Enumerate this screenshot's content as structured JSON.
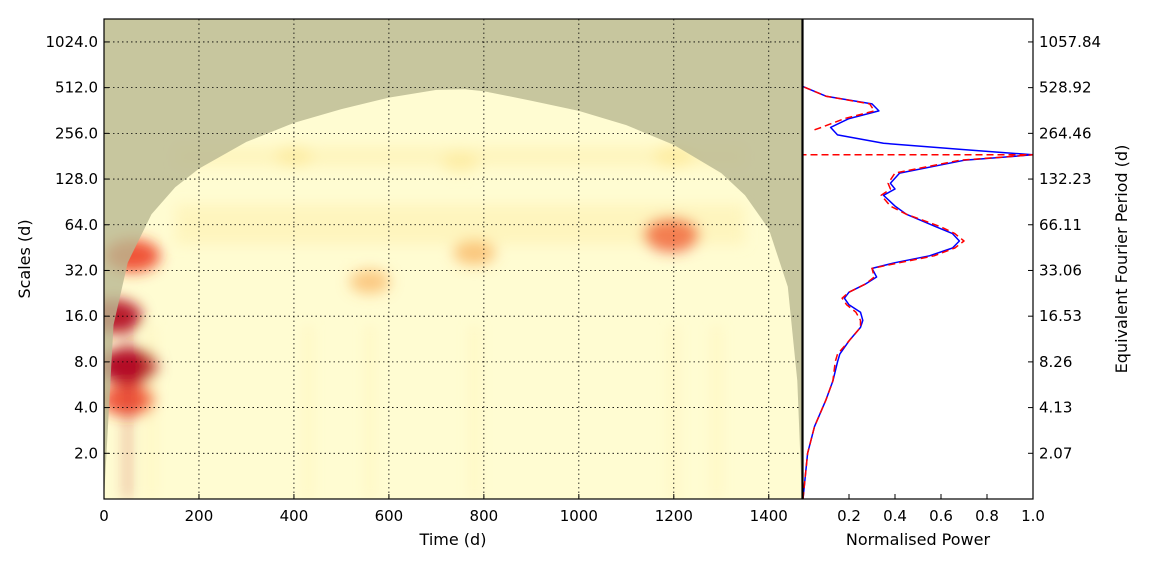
{
  "chart_data": [
    {
      "type": "heatmap",
      "name": "wavelet-power-spectrum",
      "xlabel": "Time (d)",
      "ylabel": "Scales (d)",
      "xlim": [
        0,
        1470
      ],
      "x_ticks": [
        0,
        200,
        400,
        600,
        800,
        1000,
        1200,
        1400
      ],
      "y_scale": "log2",
      "ylim": [
        1.0,
        1450
      ],
      "y_ticks": [
        2.0,
        4.0,
        8.0,
        16.0,
        32.0,
        64.0,
        128.0,
        256.0,
        512.0,
        1024.0
      ],
      "y_tick_labels": [
        "2.0",
        "4.0",
        "8.0",
        "16.0",
        "32.0",
        "64.0",
        "128.0",
        "256.0",
        "512.0",
        "1024.0"
      ],
      "grid": true,
      "colormap": [
        "#fffcd2",
        "#fde68e",
        "#f9a547",
        "#ee3a1f",
        "#b0001a"
      ],
      "cone_of_influence_color": "#b9b891",
      "cone_of_influence": {
        "time": [
          0,
          20,
          50,
          100,
          150,
          200,
          300,
          400,
          500,
          600,
          700,
          760,
          800,
          900,
          1000,
          1100,
          1200,
          1300,
          1350,
          1400,
          1440,
          1460,
          1470
        ],
        "scale": [
          1.0,
          14,
          36,
          75,
          113,
          150,
          225,
          300,
          370,
          440,
          495,
          500,
          485,
          420,
          360,
          290,
          215,
          140,
          100,
          60,
          25,
          6,
          1.0
        ]
      },
      "features": [
        {
          "time": 50,
          "scale": 7.5,
          "power": 1.0
        },
        {
          "time": 50,
          "scale": 4.5,
          "power": 0.8
        },
        {
          "time": 20,
          "scale": 16,
          "power": 0.9
        },
        {
          "time": 60,
          "scale": 40,
          "power": 0.85
        },
        {
          "time": 1195,
          "scale": 55,
          "power": 0.85
        },
        {
          "time": 780,
          "scale": 42,
          "power": 0.45
        },
        {
          "time": 560,
          "scale": 27,
          "power": 0.4
        },
        {
          "time": 1200,
          "scale": 180,
          "power": 0.35
        },
        {
          "time": 400,
          "scale": 180,
          "power": 0.25
        },
        {
          "time": 750,
          "scale": 165,
          "power": 0.25
        }
      ]
    },
    {
      "type": "line",
      "name": "global-wavelet-spectrum",
      "xlabel": "Normalised Power",
      "ylabel": "Equivalent Fourier Period (d)",
      "xlim": [
        0.0,
        1.0
      ],
      "x_ticks": [
        0.2,
        0.4,
        0.6,
        0.8,
        1.0
      ],
      "x_tick_labels": [
        "0.2",
        "0.4",
        "0.6",
        "0.8",
        "1.0"
      ],
      "right_axis_ticks": [
        2.07,
        4.13,
        8.26,
        16.53,
        33.06,
        66.11,
        132.23,
        264.46,
        528.92,
        1057.84
      ],
      "right_axis_tick_labels": [
        "2.07",
        "4.13",
        "8.26",
        "16.53",
        "33.06",
        "66.11",
        "132.23",
        "264.46",
        "528.92",
        "1057.84"
      ],
      "series": [
        {
          "color": "#0000ff",
          "style": "solid",
          "points": [
            [
              0.0,
              1.0
            ],
            [
              0.02,
              2.0
            ],
            [
              0.05,
              3.0
            ],
            [
              0.1,
              4.5
            ],
            [
              0.13,
              6.0
            ],
            [
              0.15,
              8.0
            ],
            [
              0.16,
              9.0
            ],
            [
              0.2,
              11
            ],
            [
              0.25,
              13.5
            ],
            [
              0.26,
              15
            ],
            [
              0.25,
              17
            ],
            [
              0.2,
              19
            ],
            [
              0.18,
              21
            ],
            [
              0.2,
              23
            ],
            [
              0.27,
              26
            ],
            [
              0.32,
              29
            ],
            [
              0.3,
              33
            ],
            [
              0.4,
              36
            ],
            [
              0.55,
              40
            ],
            [
              0.65,
              45
            ],
            [
              0.68,
              50
            ],
            [
              0.65,
              56
            ],
            [
              0.58,
              62
            ],
            [
              0.45,
              75
            ],
            [
              0.4,
              85
            ],
            [
              0.35,
              100
            ],
            [
              0.4,
              110
            ],
            [
              0.38,
              120
            ],
            [
              0.42,
              140
            ],
            [
              0.7,
              170
            ],
            [
              1.0,
              185
            ],
            [
              0.7,
              200
            ],
            [
              0.35,
              220
            ],
            [
              0.15,
              250
            ],
            [
              0.12,
              280
            ],
            [
              0.2,
              320
            ],
            [
              0.33,
              360
            ],
            [
              0.3,
              400
            ],
            [
              0.1,
              450
            ],
            [
              0.0,
              520
            ]
          ]
        },
        {
          "color": "#ff0000",
          "style": "dashed",
          "points": [
            [
              0.0,
              1.0
            ],
            [
              0.02,
              2.0
            ],
            [
              0.05,
              3.0
            ],
            [
              0.1,
              4.5
            ],
            [
              0.13,
              6.0
            ],
            [
              0.14,
              8.0
            ],
            [
              0.15,
              9.0
            ],
            [
              0.2,
              11
            ],
            [
              0.25,
              13.5
            ],
            [
              0.25,
              15
            ],
            [
              0.23,
              17
            ],
            [
              0.19,
              19
            ],
            [
              0.17,
              21
            ],
            [
              0.2,
              23
            ],
            [
              0.27,
              26
            ],
            [
              0.31,
              29
            ],
            [
              0.3,
              33
            ],
            [
              0.42,
              36
            ],
            [
              0.57,
              40
            ],
            [
              0.66,
              45
            ],
            [
              0.7,
              50
            ],
            [
              0.66,
              56
            ],
            [
              0.6,
              62
            ],
            [
              0.45,
              75
            ],
            [
              0.38,
              85
            ],
            [
              0.34,
              100
            ],
            [
              0.38,
              110
            ],
            [
              0.37,
              120
            ],
            [
              0.4,
              140
            ],
            [
              0.68,
              170
            ],
            [
              1.0,
              185
            ],
            [
              0.0,
              185
            ]
          ]
        },
        {
          "color": "#ff0000",
          "style": "dashed",
          "points": [
            [
              0.05,
              270
            ],
            [
              0.08,
              280
            ],
            [
              0.18,
              320
            ],
            [
              0.31,
              360
            ],
            [
              0.29,
              400
            ],
            [
              0.1,
              450
            ],
            [
              0.0,
              520
            ]
          ]
        }
      ]
    }
  ]
}
